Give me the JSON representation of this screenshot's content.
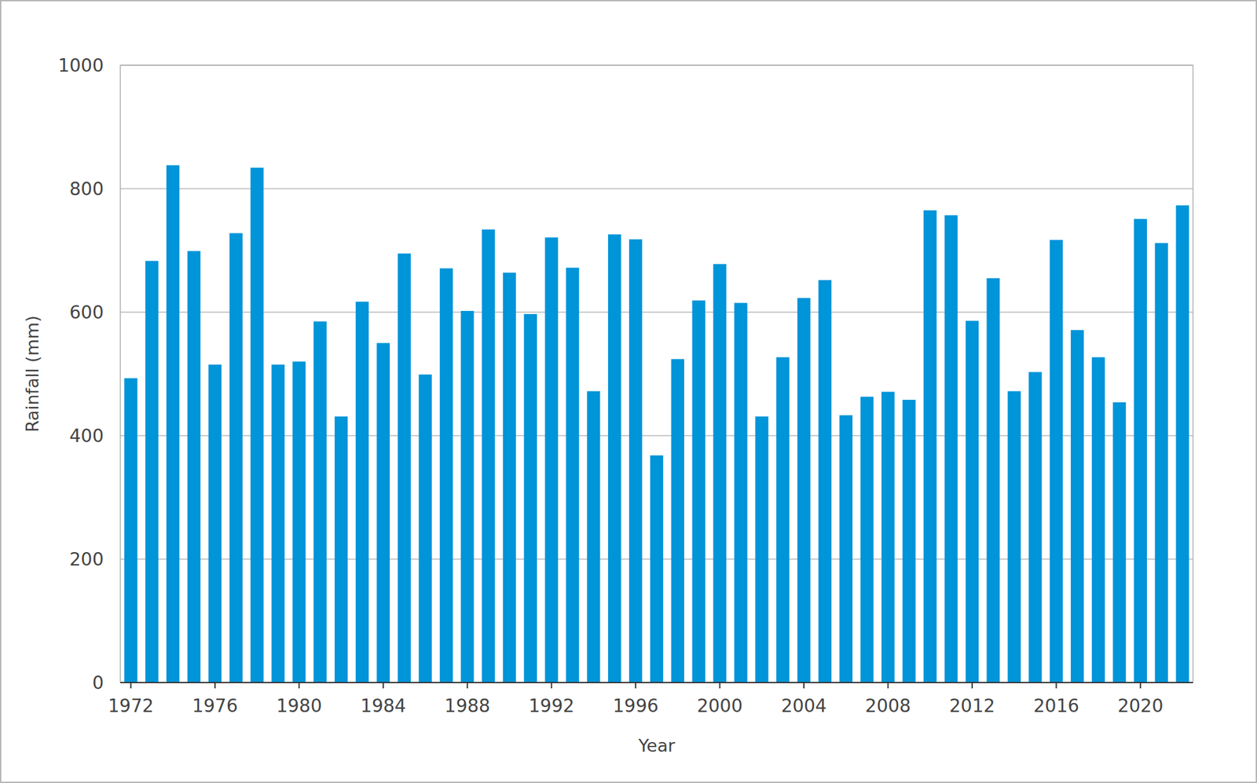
{
  "chart_data": {
    "type": "bar",
    "x_label": "Year",
    "y_label": "Rainfall (mm)",
    "categories": [
      "1972",
      null,
      null,
      null,
      "1976",
      null,
      null,
      null,
      "1980",
      null,
      null,
      null,
      "1984",
      null,
      null,
      null,
      "1988",
      null,
      null,
      null,
      "1992",
      null,
      null,
      null,
      "1996",
      null,
      null,
      null,
      "2000",
      null,
      null,
      null,
      "2004",
      null,
      null,
      null,
      "2008",
      null,
      null,
      null,
      "2012",
      null,
      null,
      null,
      "2016",
      null,
      null,
      null,
      "2020",
      null,
      null
    ],
    "values": [
      493,
      683,
      838,
      699,
      515,
      728,
      834,
      515,
      520,
      585,
      431,
      617,
      550,
      695,
      499,
      671,
      602,
      734,
      664,
      597,
      721,
      672,
      472,
      726,
      718,
      368,
      524,
      619,
      678,
      615,
      431,
      527,
      623,
      652,
      433,
      463,
      471,
      458,
      765,
      757,
      586,
      655,
      472,
      503,
      717,
      571,
      527,
      454,
      751,
      712,
      773
    ],
    "color": "#0094d9",
    "ylim": [
      0,
      1000
    ],
    "yticks": [
      0,
      200,
      400,
      600,
      800,
      1000
    ],
    "grid": true
  }
}
